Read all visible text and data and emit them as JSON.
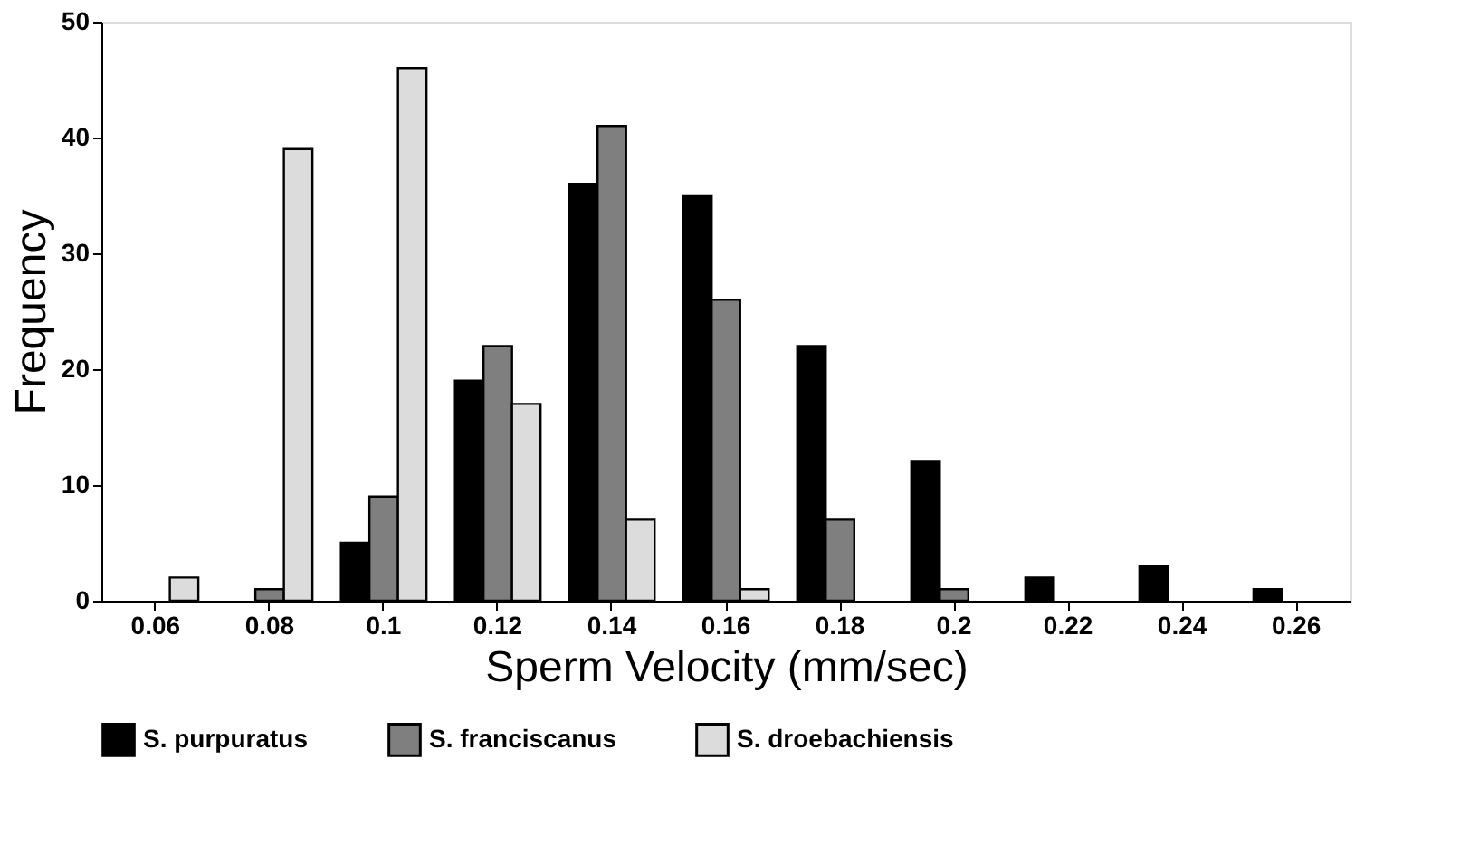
{
  "chart_data": {
    "type": "bar",
    "xlabel": "Sperm Velocity (mm/sec)",
    "ylabel": "Frequency",
    "categories": [
      "0.06",
      "0.08",
      "0.1",
      "0.12",
      "0.14",
      "0.16",
      "0.18",
      "0.2",
      "0.22",
      "0.24",
      "0.26"
    ],
    "series": [
      {
        "name": "S. purpuratus",
        "color": "#000000",
        "values": [
          0,
          0,
          5,
          19,
          36,
          35,
          22,
          12,
          2,
          3,
          1
        ]
      },
      {
        "name": "S. franciscanus",
        "color": "#7f7f7f",
        "values": [
          0,
          1,
          9,
          22,
          41,
          26,
          7,
          1,
          0,
          0,
          0
        ]
      },
      {
        "name": "S. droebachiensis",
        "color": "#dcdcdc",
        "values": [
          2,
          39,
          46,
          17,
          7,
          1,
          0,
          0,
          0,
          0,
          0
        ]
      }
    ],
    "ylim": [
      0,
      50
    ],
    "yticks": [
      0,
      10,
      20,
      30,
      40,
      50
    ],
    "grid": false,
    "legend": "bottom"
  }
}
